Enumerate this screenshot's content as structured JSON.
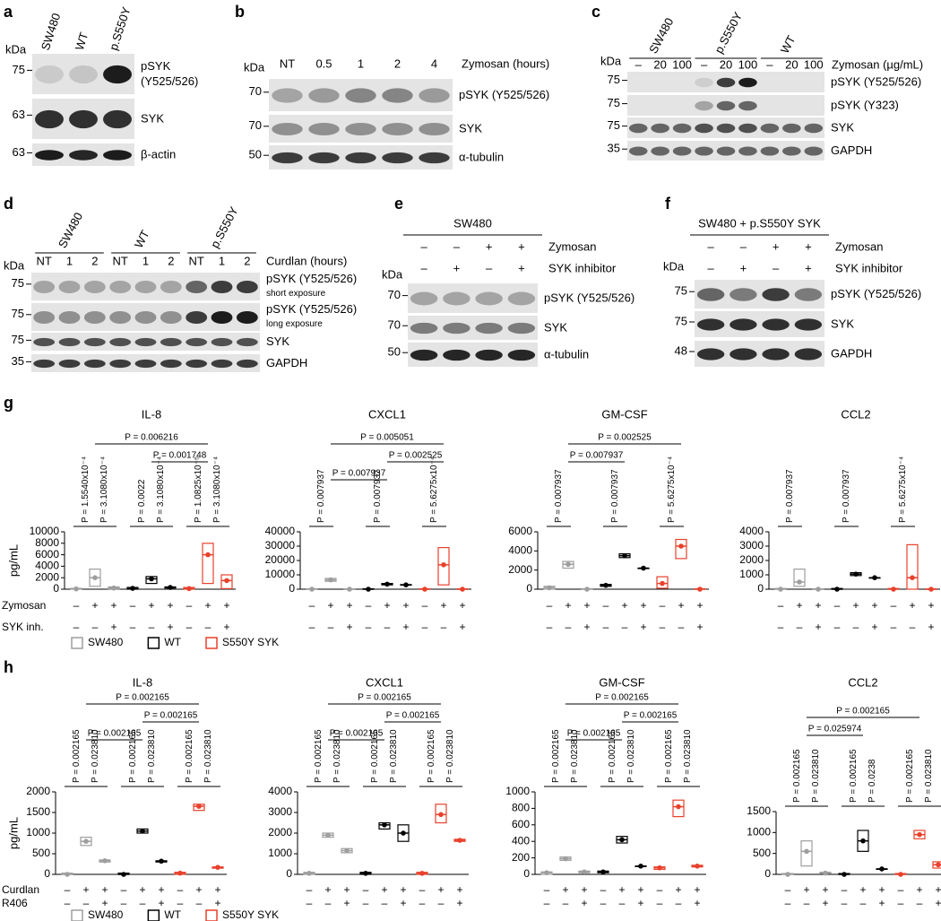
{
  "blots": {
    "a": {
      "letter": "a",
      "kda": "kDa",
      "lanes": [
        "SW480",
        "WT",
        "p.S550Y"
      ],
      "rows": [
        {
          "marker": "75",
          "label": [
            "pSYK",
            "(Y525/526)"
          ]
        },
        {
          "marker": "63",
          "label": [
            "SYK"
          ]
        },
        {
          "marker": "63",
          "label": [
            "β-actin"
          ]
        }
      ]
    },
    "b": {
      "letter": "b",
      "kda": "kDa",
      "lanes": [
        "NT",
        "0.5",
        "1",
        "2",
        "4"
      ],
      "treatment": "Zymosan (hours)",
      "rows": [
        {
          "marker": "70",
          "label": [
            "pSYK (Y525/526)"
          ]
        },
        {
          "marker": "70",
          "label": [
            "SYK"
          ]
        },
        {
          "marker": "50",
          "label": [
            "α-tubulin"
          ]
        }
      ]
    },
    "c": {
      "letter": "c",
      "kda": "kDa",
      "groups": [
        "SW480",
        "p.S550Y",
        "WT"
      ],
      "lanes": [
        "–",
        "20",
        "100",
        "–",
        "20",
        "100",
        "–",
        "20",
        "100"
      ],
      "treatment": "Zymosan (µg/mL)",
      "rows": [
        {
          "marker": "75",
          "label": [
            "pSYK (Y525/526)"
          ]
        },
        {
          "marker": "75",
          "label": [
            "pSYK (Y323)"
          ]
        },
        {
          "marker": "75",
          "label": [
            "SYK"
          ]
        },
        {
          "marker": "35",
          "label": [
            "GAPDH"
          ]
        }
      ]
    },
    "d": {
      "letter": "d",
      "kda": "kDa",
      "groups": [
        "SW480",
        "WT",
        "p.S550Y"
      ],
      "lanes": [
        "NT",
        "1",
        "2",
        "NT",
        "1",
        "2",
        "NT",
        "1",
        "2"
      ],
      "treatment": "Curdlan (hours)",
      "rows": [
        {
          "marker": "75",
          "label": [
            "pSYK (Y525/526)",
            "short exposure"
          ]
        },
        {
          "marker": "75",
          "label": [
            "pSYK (Y525/526)",
            "long exposure"
          ]
        },
        {
          "marker": "75",
          "label": [
            "SYK"
          ]
        },
        {
          "marker": "35",
          "label": [
            "GAPDH"
          ]
        }
      ]
    },
    "e": {
      "letter": "e",
      "kda": "kDa",
      "header": "SW480",
      "conditions": [
        {
          "label": "Zymosan",
          "signs": [
            "–",
            "–",
            "+",
            "+"
          ]
        },
        {
          "label": "SYK inhibitor",
          "signs": [
            "–",
            "+",
            "–",
            "+"
          ]
        }
      ],
      "rows": [
        {
          "marker": "70",
          "label": [
            "pSYK (Y525/526)"
          ]
        },
        {
          "marker": "70",
          "label": [
            "SYK"
          ]
        },
        {
          "marker": "50",
          "label": [
            "α-tubulin"
          ]
        }
      ]
    },
    "f": {
      "letter": "f",
      "kda": "kDa",
      "header": "SW480 + p.S550Y SYK",
      "conditions": [
        {
          "label": "Zymosan",
          "signs": [
            "–",
            "–",
            "+",
            "+"
          ]
        },
        {
          "label": "SYK inhibitor",
          "signs": [
            "–",
            "+",
            "–",
            "+"
          ]
        }
      ],
      "rows": [
        {
          "marker": "75",
          "label": [
            "pSYK (Y525/526)"
          ]
        },
        {
          "marker": "75",
          "label": [
            "SYK"
          ]
        },
        {
          "marker": "48",
          "label": [
            "GAPDH"
          ]
        }
      ]
    }
  },
  "figure": {
    "g": {
      "letter": "g",
      "y_label": "pg/mL",
      "legend": [
        {
          "name": "SW480",
          "color": "#9e9e9e"
        },
        {
          "name": "WT",
          "color": "#000000"
        },
        {
          "name": "S550Y SYK",
          "color": "#e8412c"
        }
      ],
      "rows": [
        {
          "label": "Zymosan",
          "signs": [
            "–",
            "+",
            "+",
            "–",
            "+",
            "+",
            "–",
            "+",
            "+"
          ]
        },
        {
          "label": "SYK inh.",
          "signs": [
            "–",
            "–",
            "+",
            "–",
            "–",
            "+",
            "–",
            "–",
            "+"
          ]
        }
      ]
    },
    "h": {
      "letter": "h",
      "y_label": "pg/mL",
      "legend": [
        {
          "name": "SW480",
          "color": "#9e9e9e"
        },
        {
          "name": "WT",
          "color": "#000000"
        },
        {
          "name": "S550Y SYK",
          "color": "#e8412c"
        }
      ],
      "rows": [
        {
          "label": "Curdlan",
          "signs": [
            "–",
            "+",
            "+",
            "–",
            "+",
            "+",
            "–",
            "+",
            "+"
          ]
        },
        {
          "label": "R406",
          "signs": [
            "–",
            "–",
            "+",
            "–",
            "–",
            "+",
            "–",
            "–",
            "+"
          ]
        }
      ]
    }
  },
  "chart_data": [
    {
      "type": "box",
      "title": "IL-8",
      "ylim": [
        0,
        10000
      ],
      "yticks": [
        0,
        2000,
        4000,
        6000,
        8000,
        10000
      ],
      "series": [
        {
          "low": [
            0,
            500,
            50
          ],
          "median": [
            50,
            2000,
            200
          ],
          "high": [
            150,
            3500,
            400
          ]
        },
        {
          "low": [
            0,
            1000,
            200
          ],
          "median": [
            150,
            1800,
            300
          ],
          "high": [
            300,
            2200,
            400
          ]
        },
        {
          "low": [
            0,
            1000,
            100
          ],
          "median": [
            100,
            6000,
            1500
          ],
          "high": [
            300,
            8000,
            2500
          ]
        }
      ],
      "brackets": [
        {
          "text": "P = 0.006216",
          "from": 1,
          "to": 7
        },
        {
          "text": "P = 0.001748",
          "from": 4,
          "to": 7
        }
      ],
      "pairs": [
        {
          "text": "P = 1.5540x10⁻⁴",
          "from": 0,
          "to": 1
        },
        {
          "text": "P = 3.1080x10⁻⁴",
          "from": 1,
          "to": 2
        },
        {
          "text": "P = 0.0022",
          "from": 3,
          "to": 4
        },
        {
          "text": "P = 3.1080x10⁻⁴",
          "from": 4,
          "to": 5
        },
        {
          "text": "P = 1.0825x10⁻⁵",
          "from": 6,
          "to": 7
        },
        {
          "text": "P = 3.1080x10⁻⁴",
          "from": 7,
          "to": 8
        }
      ]
    },
    {
      "type": "box",
      "title": "CXCL1",
      "ylim": [
        0,
        40000
      ],
      "yticks": [
        0,
        10000,
        20000,
        30000,
        40000
      ],
      "series": [
        {
          "low": [
            0,
            5500,
            0
          ],
          "median": [
            0,
            6500,
            0
          ],
          "high": [
            300,
            7500,
            200
          ]
        },
        {
          "low": [
            0,
            3000,
            2800
          ],
          "median": [
            0,
            3500,
            3000
          ],
          "high": [
            300,
            4000,
            3200
          ]
        },
        {
          "low": [
            0,
            3000,
            0
          ],
          "median": [
            0,
            17000,
            0
          ],
          "high": [
            300,
            29000,
            200
          ]
        }
      ],
      "brackets": [
        {
          "text": "P = 0.005051",
          "from": 1,
          "to": 7
        },
        {
          "text": "P = 0.002525",
          "from": 4,
          "to": 7
        },
        {
          "text": "P = 0.007937",
          "from": 1,
          "to": 4
        }
      ],
      "pairs": [
        {
          "text": "P = 0.007937",
          "from": 0,
          "to": 1
        },
        {
          "text": "P = 0.007937",
          "from": 3,
          "to": 4
        },
        {
          "text": "P = 5.6275x10⁻⁴",
          "from": 6,
          "to": 7
        }
      ]
    },
    {
      "type": "box",
      "title": "GM-CSF",
      "ylim": [
        0,
        6000
      ],
      "yticks": [
        0,
        2000,
        4000,
        6000
      ],
      "series": [
        {
          "low": [
            0,
            2200,
            0
          ],
          "median": [
            150,
            2600,
            0
          ],
          "high": [
            300,
            2900,
            50
          ]
        },
        {
          "low": [
            300,
            3300,
            2200
          ],
          "median": [
            400,
            3500,
            2200
          ],
          "high": [
            500,
            3700,
            2200
          ]
        },
        {
          "low": [
            100,
            3200,
            0
          ],
          "median": [
            600,
            4500,
            0
          ],
          "high": [
            1300,
            5200,
            50
          ]
        }
      ],
      "brackets": [
        {
          "text": "P = 0.002525",
          "from": 1,
          "to": 7
        },
        {
          "text": "P = 0.007937",
          "from": 1,
          "to": 4
        }
      ],
      "pairs": [
        {
          "text": "P = 0.007937",
          "from": 0,
          "to": 1
        },
        {
          "text": "P = 0.007937",
          "from": 3,
          "to": 4
        },
        {
          "text": "P = 5.6275x10⁻⁴",
          "from": 6,
          "to": 7
        }
      ]
    },
    {
      "type": "box",
      "title": "CCL2",
      "ylim": [
        0,
        4000
      ],
      "yticks": [
        0,
        1000,
        2000,
        3000,
        4000
      ],
      "series": [
        {
          "low": [
            0,
            200,
            0
          ],
          "median": [
            0,
            500,
            0
          ],
          "high": [
            50,
            1400,
            20
          ]
        },
        {
          "low": [
            0,
            950,
            800
          ],
          "median": [
            0,
            1050,
            800
          ],
          "high": [
            50,
            1150,
            800
          ]
        },
        {
          "low": [
            0,
            0,
            0
          ],
          "median": [
            0,
            800,
            0
          ],
          "high": [
            50,
            3100,
            20
          ]
        }
      ],
      "brackets": [],
      "pairs": [
        {
          "text": "P = 0.007937",
          "from": 0,
          "to": 1
        },
        {
          "text": "P = 0.007937",
          "from": 3,
          "to": 4
        },
        {
          "text": "P = 5.6275x10⁻⁴",
          "from": 6,
          "to": 7
        }
      ]
    },
    {
      "type": "box",
      "title": "IL-8",
      "ylim": [
        0,
        2000
      ],
      "yticks": [
        0,
        500,
        1000,
        1500,
        2000
      ],
      "series": [
        {
          "low": [
            0,
            700,
            300
          ],
          "median": [
            0,
            800,
            330
          ],
          "high": [
            30,
            900,
            350
          ]
        },
        {
          "low": [
            0,
            1000,
            300
          ],
          "median": [
            0,
            1050,
            320
          ],
          "high": [
            30,
            1100,
            330
          ]
        },
        {
          "low": [
            0,
            1550,
            150
          ],
          "median": [
            30,
            1650,
            170
          ],
          "high": [
            50,
            1700,
            180
          ]
        }
      ],
      "brackets": [
        {
          "text": "P = 0.002165",
          "from": 1,
          "to": 7
        },
        {
          "text": "P = 0.002165",
          "from": 4,
          "to": 7
        },
        {
          "text": "P = 0.002165",
          "from": 1,
          "to": 4
        }
      ],
      "pairs": [
        {
          "text": "P = 0.002165",
          "from": 0,
          "to": 1
        },
        {
          "text": "P = 0.023810",
          "from": 1,
          "to": 2
        },
        {
          "text": "P = 0.002165",
          "from": 3,
          "to": 4
        },
        {
          "text": "P = 0.023810",
          "from": 4,
          "to": 5
        },
        {
          "text": "P = 0.002165",
          "from": 6,
          "to": 7
        },
        {
          "text": "P = 0.023810",
          "from": 7,
          "to": 8
        }
      ]
    },
    {
      "type": "box",
      "title": "CXCL1",
      "ylim": [
        0,
        4000
      ],
      "yticks": [
        0,
        1000,
        2000,
        3000,
        4000
      ],
      "series": [
        {
          "low": [
            0,
            1800,
            1050
          ],
          "median": [
            50,
            1900,
            1150
          ],
          "high": [
            100,
            2000,
            1250
          ]
        },
        {
          "low": [
            0,
            2200,
            1600
          ],
          "median": [
            50,
            2400,
            2000
          ],
          "high": [
            100,
            2500,
            2400
          ]
        },
        {
          "low": [
            0,
            2500,
            1600
          ],
          "median": [
            50,
            2900,
            1650
          ],
          "high": [
            100,
            3400,
            1700
          ]
        }
      ],
      "brackets": [
        {
          "text": "P = 0.002165",
          "from": 1,
          "to": 7
        },
        {
          "text": "P = 0.002165",
          "from": 4,
          "to": 7
        },
        {
          "text": "P = 0.002165",
          "from": 1,
          "to": 4
        }
      ],
      "pairs": [
        {
          "text": "P = 0.002165",
          "from": 0,
          "to": 1
        },
        {
          "text": "P = 0.023810",
          "from": 1,
          "to": 2
        },
        {
          "text": "P = 0.002165",
          "from": 3,
          "to": 4
        },
        {
          "text": "P = 0.023810",
          "from": 4,
          "to": 5
        },
        {
          "text": "P = 0.002165",
          "from": 6,
          "to": 7
        },
        {
          "text": "P = 0.023810",
          "from": 7,
          "to": 8
        }
      ]
    },
    {
      "type": "box",
      "title": "GM-CSF",
      "ylim": [
        0,
        1000
      ],
      "yticks": [
        0,
        200,
        400,
        600,
        800,
        1000
      ],
      "series": [
        {
          "low": [
            0,
            170,
            20
          ],
          "median": [
            20,
            190,
            30
          ],
          "high": [
            30,
            210,
            40
          ]
        },
        {
          "low": [
            20,
            380,
            100
          ],
          "median": [
            30,
            420,
            100
          ],
          "high": [
            40,
            460,
            100
          ]
        },
        {
          "low": [
            60,
            700,
            90
          ],
          "median": [
            80,
            820,
            100
          ],
          "high": [
            90,
            900,
            110
          ]
        }
      ],
      "brackets": [
        {
          "text": "P = 0.002165",
          "from": 1,
          "to": 7
        },
        {
          "text": "P = 0.002165",
          "from": 4,
          "to": 7
        },
        {
          "text": "P = 0.002165",
          "from": 1,
          "to": 4
        }
      ],
      "pairs": [
        {
          "text": "P = 0.002165",
          "from": 0,
          "to": 1
        },
        {
          "text": "P = 0.023810",
          "from": 1,
          "to": 2
        },
        {
          "text": "P = 0.002165",
          "from": 3,
          "to": 4
        },
        {
          "text": "P = 0.023810",
          "from": 4,
          "to": 5
        },
        {
          "text": "P = 0.002165",
          "from": 6,
          "to": 7
        },
        {
          "text": "P = 0.023810",
          "from": 7,
          "to": 8
        }
      ]
    },
    {
      "type": "box",
      "title": "CCL2",
      "ylim": [
        0,
        1500
      ],
      "yticks": [
        0,
        500,
        1000,
        1500
      ],
      "series": [
        {
          "low": [
            0,
            200,
            20
          ],
          "median": [
            0,
            550,
            30
          ],
          "high": [
            20,
            800,
            50
          ]
        },
        {
          "low": [
            0,
            550,
            130
          ],
          "median": [
            0,
            800,
            130
          ],
          "high": [
            20,
            1050,
            130
          ]
        },
        {
          "low": [
            0,
            850,
            150
          ],
          "median": [
            0,
            950,
            230
          ],
          "high": [
            20,
            1050,
            300
          ]
        }
      ],
      "brackets": [
        {
          "text": "P = 0.002165",
          "from": 1,
          "to": 7
        },
        {
          "text": "P = 0.025974",
          "from": 1,
          "to": 4
        }
      ],
      "pairs": [
        {
          "text": "P = 0.002165",
          "from": 0,
          "to": 1
        },
        {
          "text": "P = 0.023810",
          "from": 1,
          "to": 2
        },
        {
          "text": "P = 0.002165",
          "from": 3,
          "to": 4
        },
        {
          "text": "P = 0.0238",
          "from": 4,
          "to": 5
        },
        {
          "text": "P = 0.002165",
          "from": 6,
          "to": 7
        },
        {
          "text": "P = 0.023810",
          "from": 7,
          "to": 8
        }
      ]
    }
  ]
}
